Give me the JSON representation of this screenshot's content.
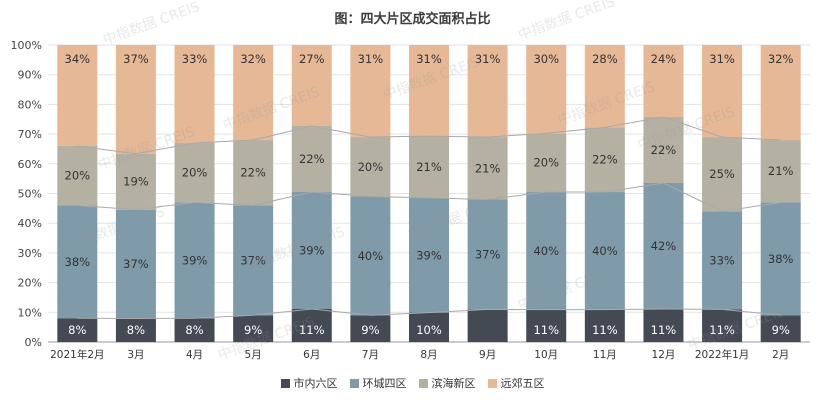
{
  "chart_data": {
    "type": "bar",
    "stacked": true,
    "title": "图：四大片区成交面积占比",
    "categories": [
      "2021年2月",
      "3月",
      "4月",
      "5月",
      "6月",
      "7月",
      "8月",
      "9月",
      "10月",
      "11月",
      "12月",
      "2022年1月",
      "2月"
    ],
    "ylim": [
      0,
      100
    ],
    "ytick_labels": [
      "0%",
      "10%",
      "20%",
      "30%",
      "40%",
      "50%",
      "60%",
      "70%",
      "80%",
      "90%",
      "100%"
    ],
    "series": [
      {
        "name": "市内六区",
        "color": "#434a54",
        "values": [
          8,
          8,
          8,
          9,
          11,
          9,
          10,
          11,
          11,
          11,
          11,
          11,
          9
        ],
        "labels": [
          "8%",
          "8%",
          "8%",
          "9%",
          "11%",
          "9%",
          "10%",
          "",
          "11%",
          "11%",
          "11%",
          "11%",
          "9%"
        ]
      },
      {
        "name": "环城四区",
        "color": "#7f9aa9",
        "values": [
          38,
          37,
          39,
          37,
          39,
          40,
          39,
          37,
          40,
          40,
          42,
          33,
          38
        ],
        "labels": [
          "38%",
          "37%",
          "39%",
          "37%",
          "39%",
          "40%",
          "39%",
          "37%",
          "40%",
          "40%",
          "42%",
          "33%",
          "38%"
        ]
      },
      {
        "name": "滨海新区",
        "color": "#b5b1a2",
        "values": [
          20,
          19,
          20,
          22,
          22,
          20,
          21,
          21,
          20,
          22,
          22,
          25,
          21
        ],
        "labels": [
          "20%",
          "19%",
          "20%",
          "22%",
          "22%",
          "20%",
          "21%",
          "21%",
          "20%",
          "22%",
          "22%",
          "25%",
          "21%"
        ]
      },
      {
        "name": "远郊五区",
        "color": "#e6b896",
        "values": [
          34,
          37,
          33,
          32,
          27,
          31,
          31,
          31,
          30,
          28,
          24,
          31,
          32
        ],
        "labels": [
          "34%",
          "37%",
          "33%",
          "32%",
          "27%",
          "31%",
          "31%",
          "31%",
          "30%",
          "28%",
          "24%",
          "31%",
          "32%"
        ]
      }
    ],
    "grid": true,
    "legend_position": "bottom",
    "watermark": "中指数据 CREIS"
  }
}
